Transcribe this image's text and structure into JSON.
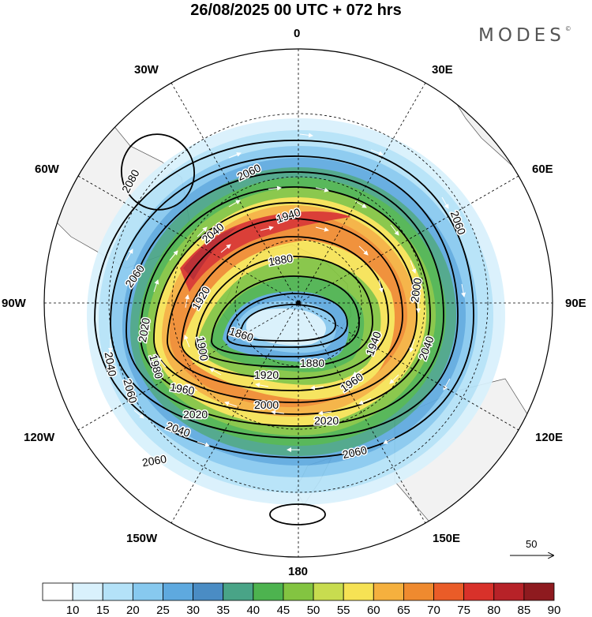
{
  "title": "26/08/2025  00 UTC  + 072 hrs",
  "brand": "MODES",
  "brand_mark": "©",
  "longitude_labels": {
    "n0": "0",
    "w30": "30W",
    "e30": "30E",
    "w60": "60W",
    "e60": "60E",
    "w90": "90W",
    "e90": "90E",
    "w120": "120W",
    "e120": "120E",
    "w150": "150W",
    "e150": "150E",
    "s180": "180"
  },
  "contour_labels": [
    "2080",
    "2060",
    "2060",
    "2040",
    "2060",
    "1940",
    "1880",
    "1920",
    "2000",
    "2020",
    "1900",
    "1860",
    "1880",
    "1920",
    "1940",
    "1980",
    "1960",
    "2040",
    "2000",
    "2060",
    "2020",
    "2040",
    "2040",
    "2060",
    "1960",
    "2020"
  ],
  "vector_scale_label": "50",
  "colorbar": {
    "ticks": [
      "10",
      "15",
      "20",
      "25",
      "30",
      "35",
      "40",
      "45",
      "50",
      "55",
      "60",
      "65",
      "70",
      "75",
      "80",
      "85",
      "90"
    ],
    "colors": [
      "#ffffff",
      "#d9f1fc",
      "#b4e2f8",
      "#87c9ef",
      "#5ea9df",
      "#4a8cc4",
      "#49a487",
      "#4db34f",
      "#83c441",
      "#c8dc4f",
      "#f6e254",
      "#f5b03e",
      "#ef8a2f",
      "#ea5c28",
      "#d8312a",
      "#b72228",
      "#8e1a1f"
    ]
  }
}
